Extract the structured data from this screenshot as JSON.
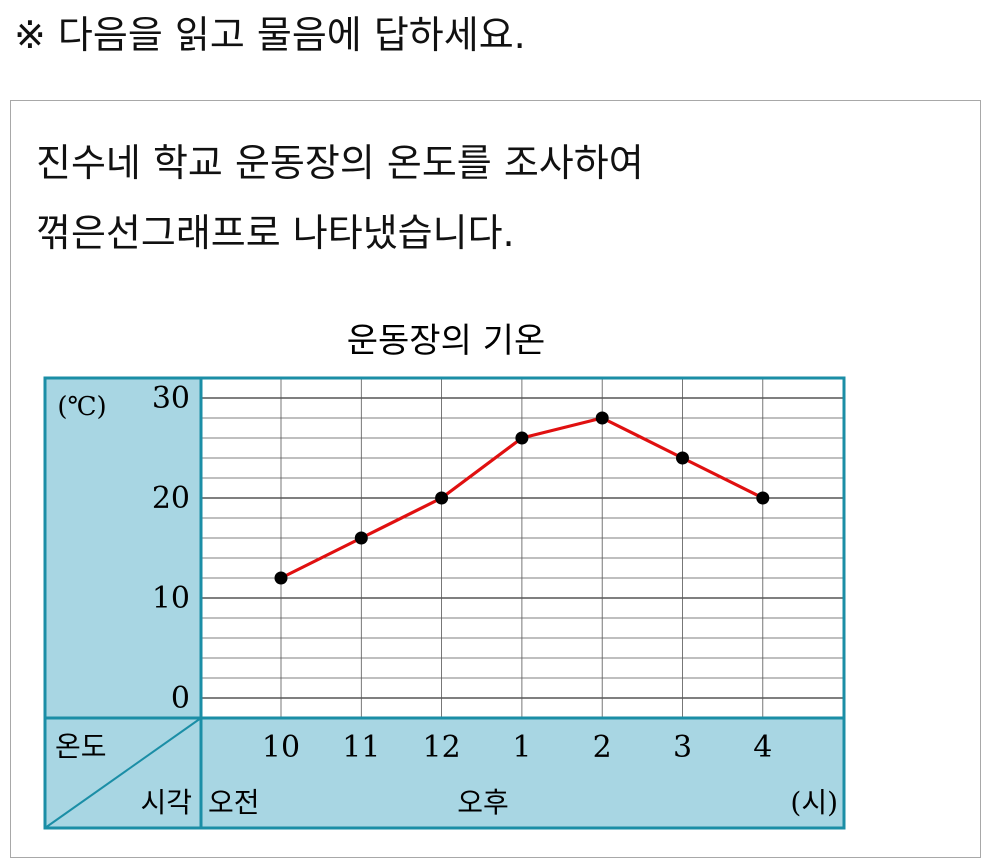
{
  "instruction": "※ 다음을 읽고 물음에 답하세요.",
  "passage": {
    "line1": "진수네 학교 운동장의 온도를 조사하여",
    "line2": "꺾은선그래프로 나타냈습니다."
  },
  "colors": {
    "panel": "#a8d6e3",
    "border": "#1b8ea6",
    "line": "#e01010",
    "point": "#000000",
    "grid": "#555555"
  },
  "chart_data": {
    "type": "line",
    "title": "운동장의 기온",
    "ylabel": "(℃)",
    "xlabel": "(시)",
    "corner_top": "온도",
    "corner_bottom": "시각",
    "period_labels": [
      "오전",
      "오후"
    ],
    "categories": [
      "10",
      "11",
      "12",
      "1",
      "2",
      "3",
      "4"
    ],
    "y_ticks": [
      "0",
      "10",
      "20",
      "30"
    ],
    "ylim": [
      0,
      30
    ],
    "grid": true,
    "series": [
      {
        "values": [
          12,
          16,
          20,
          26,
          28,
          24,
          20
        ]
      }
    ]
  }
}
